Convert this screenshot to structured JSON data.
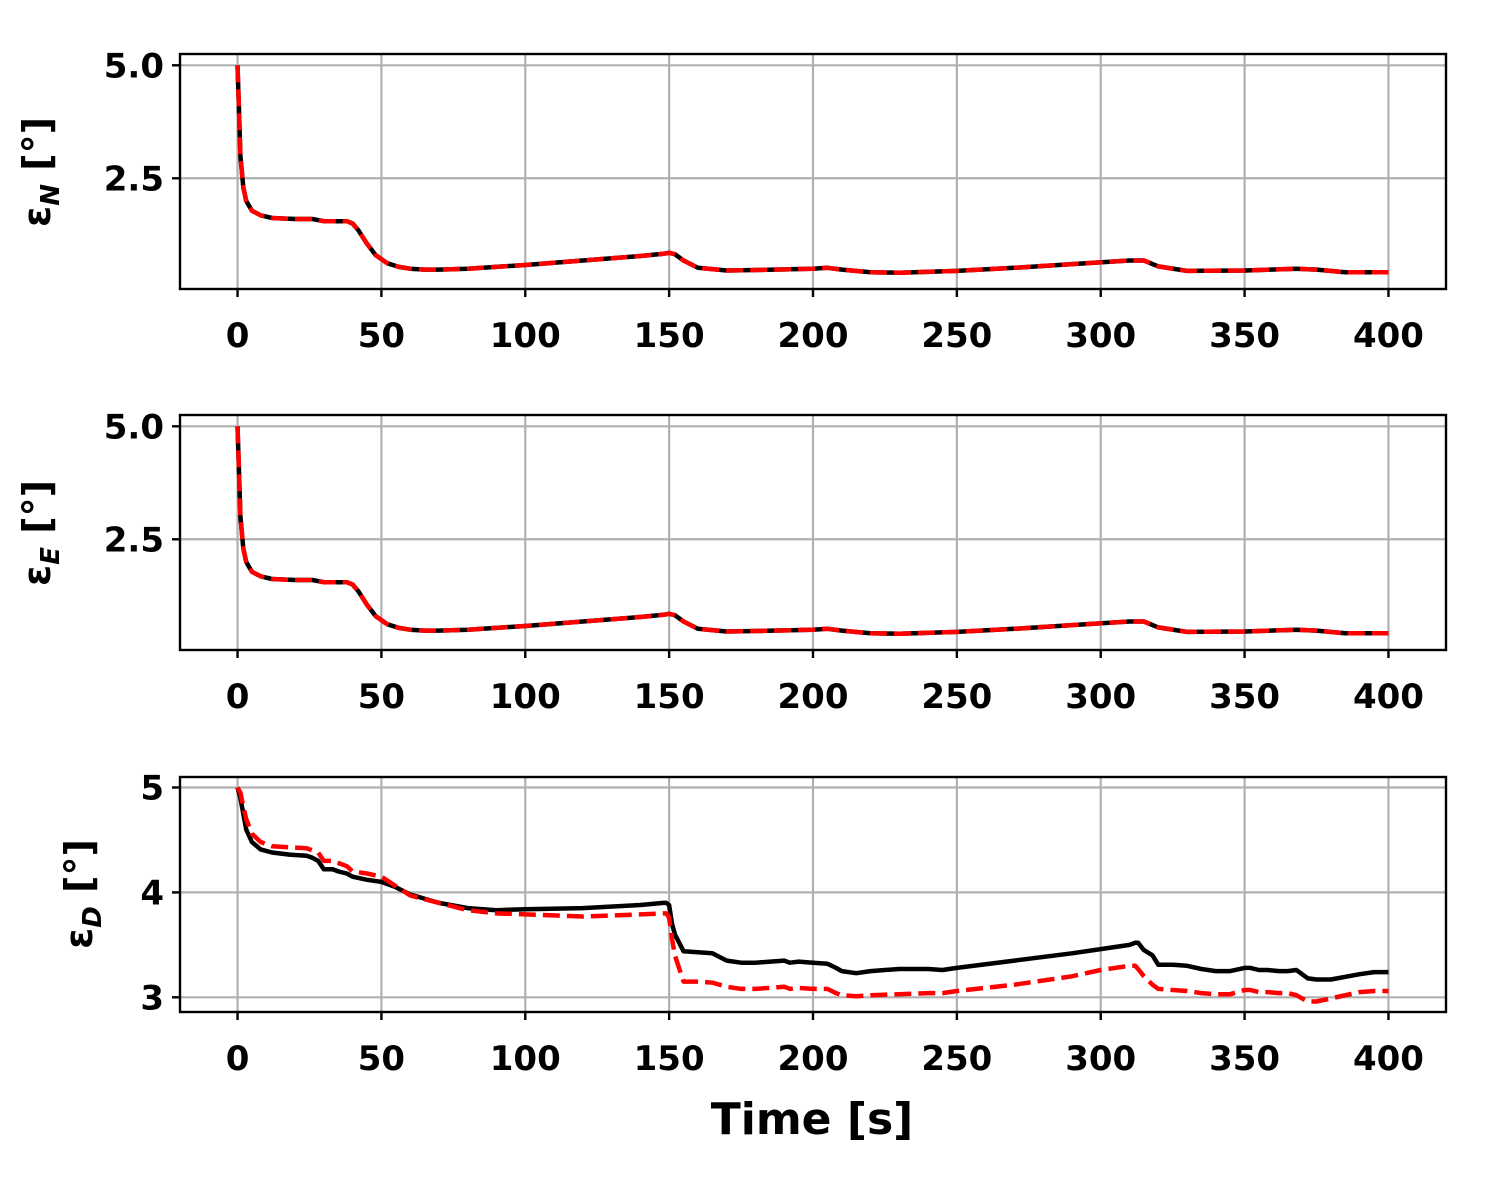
{
  "chart_data": [
    {
      "type": "line",
      "ylabel_symbol": "ε",
      "ylabel_subscript": "N",
      "ylabel_unit": " [°]",
      "xlim": [
        -20,
        420
      ],
      "ylim": [
        0.05,
        5.25
      ],
      "yticks": [
        2.5,
        5.0
      ],
      "ytick_labels": [
        "2.5",
        "5.0"
      ],
      "xticks": [
        0,
        50,
        100,
        150,
        200,
        250,
        300,
        350,
        400
      ],
      "xtick_labels": [
        "0",
        "50",
        "100",
        "150",
        "200",
        "250",
        "300",
        "350",
        "400"
      ],
      "grid": true,
      "series": [
        {
          "color": "#000000",
          "dash": "solid",
          "x": [
            0,
            0.5,
            1,
            2,
            3,
            5,
            8,
            12,
            20,
            26,
            30,
            35,
            38,
            40,
            42,
            45,
            48,
            52,
            56,
            60,
            65,
            70,
            80,
            100,
            120,
            140,
            148,
            150,
            152,
            155,
            160,
            170,
            180,
            200,
            205,
            210,
            220,
            230,
            250,
            270,
            290,
            310,
            315,
            320,
            330,
            350,
            368,
            375,
            385,
            400
          ],
          "y": [
            5.0,
            4.0,
            3.0,
            2.3,
            2.0,
            1.78,
            1.68,
            1.62,
            1.6,
            1.6,
            1.55,
            1.55,
            1.55,
            1.5,
            1.35,
            1.05,
            0.8,
            0.62,
            0.54,
            0.5,
            0.48,
            0.48,
            0.5,
            0.58,
            0.68,
            0.78,
            0.83,
            0.85,
            0.82,
            0.68,
            0.52,
            0.46,
            0.47,
            0.5,
            0.52,
            0.48,
            0.42,
            0.41,
            0.45,
            0.52,
            0.6,
            0.68,
            0.68,
            0.55,
            0.45,
            0.46,
            0.5,
            0.48,
            0.42,
            0.42
          ]
        },
        {
          "color": "#ff0000",
          "dash": "dashed",
          "x": [
            0,
            0.5,
            1,
            2,
            3,
            5,
            8,
            12,
            20,
            26,
            30,
            35,
            38,
            40,
            42,
            45,
            48,
            52,
            56,
            60,
            65,
            70,
            80,
            100,
            120,
            140,
            148,
            150,
            152,
            155,
            160,
            170,
            180,
            200,
            205,
            210,
            220,
            230,
            250,
            270,
            290,
            310,
            315,
            320,
            330,
            350,
            368,
            375,
            385,
            400
          ],
          "y": [
            5.0,
            4.0,
            3.0,
            2.3,
            2.0,
            1.78,
            1.68,
            1.62,
            1.6,
            1.6,
            1.55,
            1.55,
            1.55,
            1.5,
            1.35,
            1.05,
            0.8,
            0.62,
            0.54,
            0.5,
            0.48,
            0.48,
            0.5,
            0.58,
            0.68,
            0.78,
            0.83,
            0.85,
            0.82,
            0.68,
            0.52,
            0.46,
            0.47,
            0.5,
            0.52,
            0.48,
            0.42,
            0.41,
            0.45,
            0.52,
            0.6,
            0.68,
            0.68,
            0.55,
            0.45,
            0.46,
            0.5,
            0.48,
            0.42,
            0.42
          ]
        }
      ]
    },
    {
      "type": "line",
      "ylabel_symbol": "ε",
      "ylabel_subscript": "E",
      "ylabel_unit": " [°]",
      "xlim": [
        -20,
        420
      ],
      "ylim": [
        0.05,
        5.25
      ],
      "yticks": [
        2.5,
        5.0
      ],
      "ytick_labels": [
        "2.5",
        "5.0"
      ],
      "xticks": [
        0,
        50,
        100,
        150,
        200,
        250,
        300,
        350,
        400
      ],
      "xtick_labels": [
        "0",
        "50",
        "100",
        "150",
        "200",
        "250",
        "300",
        "350",
        "400"
      ],
      "grid": true,
      "series": [
        {
          "color": "#000000",
          "dash": "solid",
          "x": [
            0,
            0.5,
            1,
            2,
            3,
            5,
            8,
            12,
            20,
            26,
            30,
            35,
            38,
            40,
            42,
            45,
            48,
            52,
            56,
            60,
            65,
            70,
            80,
            100,
            120,
            140,
            148,
            150,
            152,
            155,
            160,
            170,
            180,
            200,
            205,
            210,
            220,
            230,
            250,
            270,
            290,
            310,
            315,
            320,
            330,
            350,
            368,
            375,
            385,
            400
          ],
          "y": [
            5.0,
            4.0,
            3.0,
            2.3,
            2.0,
            1.78,
            1.68,
            1.62,
            1.6,
            1.6,
            1.55,
            1.55,
            1.55,
            1.5,
            1.35,
            1.05,
            0.8,
            0.62,
            0.54,
            0.5,
            0.48,
            0.48,
            0.5,
            0.58,
            0.68,
            0.78,
            0.83,
            0.85,
            0.82,
            0.68,
            0.52,
            0.46,
            0.47,
            0.5,
            0.52,
            0.48,
            0.42,
            0.41,
            0.45,
            0.52,
            0.6,
            0.68,
            0.68,
            0.55,
            0.45,
            0.46,
            0.5,
            0.48,
            0.42,
            0.42
          ]
        },
        {
          "color": "#ff0000",
          "dash": "dashed",
          "x": [
            0,
            0.5,
            1,
            2,
            3,
            5,
            8,
            12,
            20,
            26,
            30,
            35,
            38,
            40,
            42,
            45,
            48,
            52,
            56,
            60,
            65,
            70,
            80,
            100,
            120,
            140,
            148,
            150,
            152,
            155,
            160,
            170,
            180,
            200,
            205,
            210,
            220,
            230,
            250,
            270,
            290,
            310,
            315,
            320,
            330,
            350,
            368,
            375,
            385,
            400
          ],
          "y": [
            5.0,
            4.0,
            3.0,
            2.3,
            2.0,
            1.78,
            1.68,
            1.62,
            1.6,
            1.6,
            1.55,
            1.55,
            1.55,
            1.5,
            1.35,
            1.05,
            0.8,
            0.62,
            0.54,
            0.5,
            0.48,
            0.48,
            0.5,
            0.58,
            0.68,
            0.78,
            0.83,
            0.85,
            0.82,
            0.68,
            0.52,
            0.46,
            0.47,
            0.5,
            0.52,
            0.48,
            0.42,
            0.41,
            0.45,
            0.52,
            0.6,
            0.68,
            0.68,
            0.55,
            0.45,
            0.46,
            0.5,
            0.48,
            0.42,
            0.42
          ]
        }
      ]
    },
    {
      "type": "line",
      "ylabel_symbol": "ε",
      "ylabel_subscript": "D",
      "ylabel_unit": " [°]",
      "xlabel": "Time [s]",
      "xlim": [
        -20,
        420
      ],
      "ylim": [
        2.86,
        5.1
      ],
      "yticks": [
        3,
        4,
        5
      ],
      "ytick_labels": [
        "3",
        "4",
        "5"
      ],
      "xticks": [
        0,
        50,
        100,
        150,
        200,
        250,
        300,
        350,
        400
      ],
      "xtick_labels": [
        "0",
        "50",
        "100",
        "150",
        "200",
        "250",
        "300",
        "350",
        "400"
      ],
      "grid": true,
      "series": [
        {
          "color": "#000000",
          "dash": "solid",
          "x": [
            0,
            1,
            2,
            3,
            5,
            8,
            12,
            18,
            24,
            26,
            28,
            30,
            33,
            35,
            38,
            40,
            45,
            50,
            55,
            60,
            70,
            80,
            90,
            100,
            120,
            140,
            148,
            149,
            150,
            151,
            152,
            155,
            160,
            165,
            170,
            175,
            180,
            190,
            192,
            195,
            200,
            205,
            208,
            210,
            215,
            220,
            230,
            240,
            245,
            250,
            270,
            290,
            300,
            310,
            312,
            313,
            315,
            318,
            320,
            325,
            330,
            335,
            340,
            345,
            350,
            352,
            355,
            358,
            362,
            365,
            368,
            370,
            372,
            375,
            380,
            390,
            395,
            400
          ],
          "y": [
            5.0,
            4.9,
            4.75,
            4.6,
            4.48,
            4.41,
            4.38,
            4.36,
            4.35,
            4.33,
            4.3,
            4.22,
            4.22,
            4.2,
            4.18,
            4.15,
            4.12,
            4.1,
            4.05,
            3.98,
            3.9,
            3.85,
            3.83,
            3.84,
            3.85,
            3.88,
            3.9,
            3.9,
            3.88,
            3.7,
            3.6,
            3.44,
            3.43,
            3.42,
            3.35,
            3.33,
            3.33,
            3.35,
            3.33,
            3.34,
            3.33,
            3.32,
            3.28,
            3.25,
            3.23,
            3.25,
            3.27,
            3.27,
            3.26,
            3.28,
            3.35,
            3.42,
            3.46,
            3.5,
            3.52,
            3.52,
            3.45,
            3.4,
            3.31,
            3.31,
            3.3,
            3.27,
            3.25,
            3.25,
            3.28,
            3.28,
            3.26,
            3.26,
            3.25,
            3.25,
            3.26,
            3.22,
            3.18,
            3.17,
            3.17,
            3.22,
            3.24,
            3.24
          ]
        },
        {
          "color": "#ff0000",
          "dash": "dashed",
          "x": [
            0,
            1,
            2,
            3,
            5,
            8,
            12,
            18,
            24,
            26,
            28,
            30,
            33,
            35,
            38,
            40,
            45,
            50,
            55,
            60,
            70,
            80,
            90,
            100,
            120,
            140,
            148,
            149,
            150,
            151,
            152,
            155,
            160,
            165,
            170,
            175,
            180,
            190,
            192,
            195,
            200,
            205,
            208,
            210,
            215,
            220,
            230,
            240,
            245,
            250,
            270,
            290,
            300,
            310,
            312,
            313,
            315,
            318,
            320,
            325,
            330,
            335,
            340,
            345,
            350,
            352,
            355,
            358,
            362,
            365,
            368,
            370,
            372,
            375,
            380,
            390,
            395,
            400
          ],
          "y": [
            5.0,
            4.95,
            4.82,
            4.7,
            4.56,
            4.48,
            4.44,
            4.43,
            4.42,
            4.4,
            4.38,
            4.3,
            4.3,
            4.28,
            4.25,
            4.2,
            4.18,
            4.15,
            4.06,
            3.97,
            3.9,
            3.83,
            3.8,
            3.79,
            3.77,
            3.79,
            3.8,
            3.8,
            3.76,
            3.56,
            3.4,
            3.15,
            3.15,
            3.14,
            3.1,
            3.08,
            3.08,
            3.1,
            3.08,
            3.09,
            3.08,
            3.08,
            3.04,
            3.02,
            3.01,
            3.02,
            3.03,
            3.04,
            3.04,
            3.06,
            3.12,
            3.2,
            3.26,
            3.3,
            3.3,
            3.27,
            3.2,
            3.12,
            3.08,
            3.07,
            3.06,
            3.04,
            3.03,
            3.03,
            3.07,
            3.07,
            3.05,
            3.05,
            3.04,
            3.04,
            3.02,
            2.99,
            2.96,
            2.96,
            2.99,
            3.05,
            3.06,
            3.06
          ]
        }
      ]
    }
  ]
}
